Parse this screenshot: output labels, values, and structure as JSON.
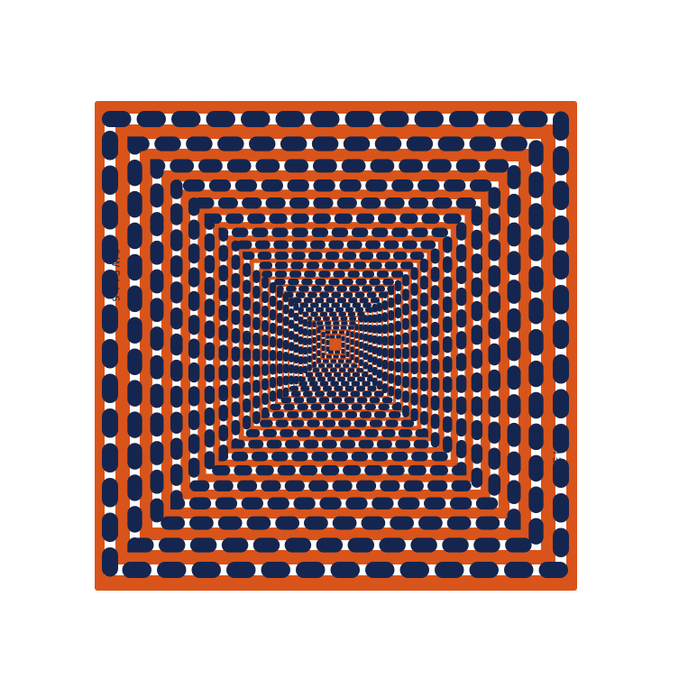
{
  "product": {
    "brand_text": "SWELLS",
    "pattern": "concentric-dotted-squares",
    "colors": {
      "background": "#ffffff",
      "scarf": "#d9541a",
      "stripe": "#ffffff",
      "dots": "#14264f"
    }
  }
}
